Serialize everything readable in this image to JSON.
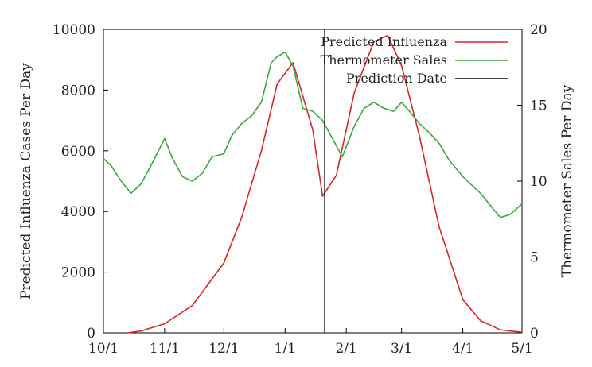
{
  "chart_data": {
    "type": "line",
    "x_unit": "date",
    "x_ticks": [
      "10/1",
      "11/1",
      "12/1",
      "1/1",
      "2/1",
      "3/1",
      "4/1",
      "5/1"
    ],
    "ylabel_left": "Predicted Influenza Cases Per Day",
    "ylabel_right": "Thermometer Sales Per Day",
    "ylim_left": [
      0,
      10000
    ],
    "ylim_right": [
      0,
      20
    ],
    "yticks_left": [
      "0",
      "2000",
      "4000",
      "6000",
      "8000",
      "10000"
    ],
    "yticks_right": [
      "0",
      "5",
      "10",
      "15",
      "20"
    ],
    "grid": false,
    "legend": "top-right",
    "series": [
      {
        "name": "Predicted Influenza",
        "axis": "left",
        "color": "#d62728",
        "x": [
          "10/13",
          "10/20",
          "11/1",
          "11/15",
          "12/1",
          "12/10",
          "12/20",
          "12/28",
          "1/5",
          "1/15",
          "1/20",
          "1/27",
          "2/5",
          "2/15",
          "2/22",
          "3/1",
          "3/10",
          "3/20",
          "4/1",
          "4/10",
          "4/20",
          "5/1"
        ],
        "y": [
          0,
          60,
          300,
          900,
          2300,
          3800,
          6000,
          8200,
          8900,
          6700,
          4500,
          5200,
          7900,
          9600,
          9800,
          8800,
          6500,
          3500,
          1100,
          400,
          100,
          20
        ]
      },
      {
        "name": "Thermometer Sales",
        "axis": "right",
        "color": "#3aa83a",
        "x": [
          "10/1",
          "10/5",
          "10/10",
          "10/15",
          "10/20",
          "10/25",
          "11/1",
          "11/5",
          "11/10",
          "11/15",
          "11/20",
          "11/25",
          "12/1",
          "12/5",
          "12/10",
          "12/15",
          "12/20",
          "12/25",
          "12/28",
          "1/1",
          "1/5",
          "1/10",
          "1/15",
          "1/20",
          "1/25",
          "1/30",
          "2/5",
          "2/10",
          "2/15",
          "2/20",
          "2/25",
          "3/1",
          "3/5",
          "3/10",
          "3/15",
          "3/20",
          "3/25",
          "4/1",
          "4/5",
          "4/10",
          "4/15",
          "4/20",
          "4/25",
          "5/1"
        ],
        "y": [
          11.5,
          11,
          10,
          9.2,
          9.8,
          11,
          12.8,
          11.5,
          10.3,
          10,
          10.5,
          11.6,
          11.8,
          13,
          13.8,
          14.3,
          15.2,
          17.8,
          18.2,
          18.5,
          17.6,
          14.8,
          14.6,
          14.0,
          12.8,
          11.6,
          13.6,
          14.8,
          15.2,
          14.8,
          14.6,
          15.2,
          14.6,
          13.8,
          13.2,
          12.5,
          11.4,
          10.3,
          9.8,
          9.2,
          8.4,
          7.6,
          7.8,
          8.5
        ]
      }
    ],
    "marker": {
      "name": "Prediction Date",
      "x": "1/21",
      "color": "#000000"
    }
  }
}
